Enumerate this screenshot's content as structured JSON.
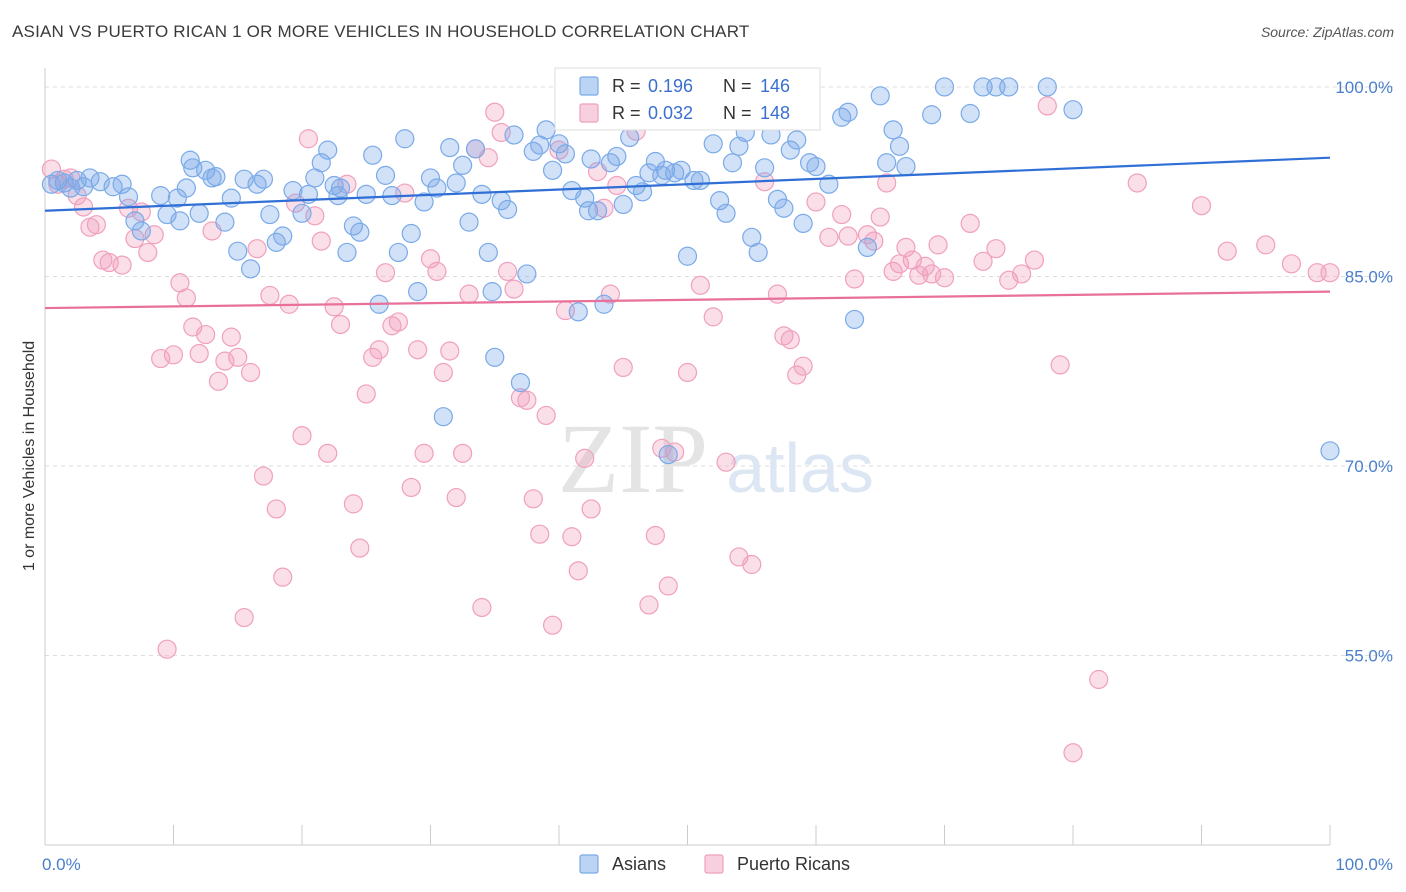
{
  "title": "ASIAN VS PUERTO RICAN 1 OR MORE VEHICLES IN HOUSEHOLD CORRELATION CHART",
  "source": "Source: ZipAtlas.com",
  "watermark": {
    "zip": "ZIP",
    "atlas": "atlas"
  },
  "colors": {
    "asian": "#7aaae8",
    "asian_line": "#2f6fd6",
    "pr": "#f0a0bd",
    "pr_line": "#e8709a",
    "tick": "#4a7fcc",
    "grid": "#dddddd"
  },
  "legend": {
    "asian": {
      "r_label": "R =",
      "r_value": "0.196",
      "n_label": "N =",
      "n_value": "146"
    },
    "pr": {
      "r_label": "R =",
      "r_value": "0.032",
      "n_label": "N =",
      "n_value": "148"
    }
  },
  "chart_data": {
    "type": "scatter",
    "xlabel": "",
    "ylabel": "1 or more Vehicles in Household",
    "xlim": [
      0,
      100
    ],
    "ylim": [
      40,
      101.5
    ],
    "x_tick_labels": [
      {
        "value": 0,
        "label": "0.0%"
      },
      {
        "value": 100,
        "label": "100.0%"
      }
    ],
    "y_tick_labels": [
      {
        "value": 100,
        "label": "100.0%"
      },
      {
        "value": 85,
        "label": "85.0%"
      },
      {
        "value": 70,
        "label": "70.0%"
      },
      {
        "value": 55,
        "label": "55.0%"
      }
    ],
    "grid": true,
    "legend_position": "top-center",
    "series": [
      {
        "name": "Asians",
        "trend": {
          "x": [
            0,
            100
          ],
          "y": [
            90.2,
            94.4
          ]
        },
        "points": [
          [
            0.5,
            92.3
          ],
          [
            1,
            92.6
          ],
          [
            1.5,
            92.4
          ],
          [
            2,
            92.0
          ],
          [
            2.5,
            92.6
          ],
          [
            3,
            92.1
          ],
          [
            3.5,
            92.8
          ],
          [
            4.3,
            92.5
          ],
          [
            5.3,
            92.1
          ],
          [
            6,
            92.3
          ],
          [
            6.5,
            91.3
          ],
          [
            7,
            89.4
          ],
          [
            7.5,
            88.6
          ],
          [
            9,
            91.4
          ],
          [
            9.5,
            89.9
          ],
          [
            10.3,
            91.2
          ],
          [
            10.5,
            89.4
          ],
          [
            11,
            92.0
          ],
          [
            11.3,
            94.2
          ],
          [
            11.5,
            93.6
          ],
          [
            12,
            90.0
          ],
          [
            12.5,
            93.4
          ],
          [
            13,
            92.8
          ],
          [
            13.3,
            92.9
          ],
          [
            14,
            89.3
          ],
          [
            14.5,
            91.2
          ],
          [
            15,
            87.0
          ],
          [
            15.5,
            92.7
          ],
          [
            16,
            85.6
          ],
          [
            16.5,
            92.3
          ],
          [
            17,
            92.7
          ],
          [
            17.5,
            89.9
          ],
          [
            18,
            87.7
          ],
          [
            18.5,
            88.2
          ],
          [
            19.3,
            91.8
          ],
          [
            20,
            90.0
          ],
          [
            20.5,
            91.5
          ],
          [
            21,
            92.8
          ],
          [
            21.5,
            94.0
          ],
          [
            22,
            95.0
          ],
          [
            22.5,
            92.2
          ],
          [
            22.8,
            91.4
          ],
          [
            23,
            92.0
          ],
          [
            23.5,
            86.9
          ],
          [
            24,
            89.0
          ],
          [
            24.5,
            88.5
          ],
          [
            25,
            91.5
          ],
          [
            25.5,
            94.6
          ],
          [
            26,
            82.8
          ],
          [
            26.5,
            93.0
          ],
          [
            27,
            91.4
          ],
          [
            27.5,
            86.9
          ],
          [
            28,
            95.9
          ],
          [
            28.5,
            88.4
          ],
          [
            29,
            83.8
          ],
          [
            29.5,
            90.9
          ],
          [
            30,
            92.8
          ],
          [
            30.5,
            92.0
          ],
          [
            31,
            73.9
          ],
          [
            31.5,
            95.2
          ],
          [
            32,
            92.4
          ],
          [
            32.5,
            93.8
          ],
          [
            33,
            89.3
          ],
          [
            33.5,
            95.1
          ],
          [
            34,
            91.5
          ],
          [
            34.5,
            86.9
          ],
          [
            34.8,
            83.8
          ],
          [
            35,
            78.6
          ],
          [
            35.5,
            91.0
          ],
          [
            36,
            90.3
          ],
          [
            36.5,
            96.2
          ],
          [
            37,
            76.6
          ],
          [
            37.5,
            85.2
          ],
          [
            38,
            94.9
          ],
          [
            38.5,
            95.4
          ],
          [
            39,
            96.6
          ],
          [
            39.5,
            93.4
          ],
          [
            40,
            95.5
          ],
          [
            40.5,
            94.7
          ],
          [
            41,
            91.8
          ],
          [
            41.5,
            82.2
          ],
          [
            42,
            91.2
          ],
          [
            42.3,
            90.2
          ],
          [
            42.5,
            94.3
          ],
          [
            43,
            90.2
          ],
          [
            43.5,
            82.8
          ],
          [
            44,
            94.0
          ],
          [
            44.5,
            94.5
          ],
          [
            45,
            90.7
          ],
          [
            45.5,
            96.0
          ],
          [
            46,
            92.2
          ],
          [
            46.5,
            91.7
          ],
          [
            47,
            93.2
          ],
          [
            47.5,
            94.1
          ],
          [
            48,
            93.0
          ],
          [
            48.3,
            93.4
          ],
          [
            48.5,
            70.9
          ],
          [
            49,
            93.2
          ],
          [
            49.5,
            93.4
          ],
          [
            50,
            86.6
          ],
          [
            50.5,
            92.6
          ],
          [
            51,
            92.6
          ],
          [
            52,
            95.5
          ],
          [
            52.5,
            91.0
          ],
          [
            53,
            90.0
          ],
          [
            53.5,
            94.0
          ],
          [
            54,
            95.3
          ],
          [
            54.5,
            96.4
          ],
          [
            55,
            88.1
          ],
          [
            55.5,
            86.9
          ],
          [
            56,
            93.6
          ],
          [
            56.5,
            96.2
          ],
          [
            57,
            91.1
          ],
          [
            57.5,
            90.4
          ],
          [
            58,
            95.0
          ],
          [
            58.5,
            95.8
          ],
          [
            59,
            89.2
          ],
          [
            59.5,
            94.0
          ],
          [
            60,
            93.7
          ],
          [
            61,
            92.3
          ],
          [
            62,
            97.6
          ],
          [
            62.5,
            98.0
          ],
          [
            63,
            81.6
          ],
          [
            64,
            87.3
          ],
          [
            65,
            99.3
          ],
          [
            65.5,
            94.0
          ],
          [
            66,
            96.6
          ],
          [
            66.5,
            95.3
          ],
          [
            67,
            93.7
          ],
          [
            69,
            97.8
          ],
          [
            70,
            100
          ],
          [
            72,
            97.9
          ],
          [
            73,
            100
          ],
          [
            74,
            100
          ],
          [
            75,
            100
          ],
          [
            78,
            100
          ],
          [
            80,
            98.2
          ],
          [
            100,
            71.2
          ]
        ]
      },
      {
        "name": "Puerto Ricans",
        "trend": {
          "x": [
            0,
            100
          ],
          "y": [
            82.5,
            83.8
          ]
        },
        "points": [
          [
            0.5,
            93.5
          ],
          [
            1,
            92.3
          ],
          [
            1.5,
            92.7
          ],
          [
            2,
            92.8
          ],
          [
            2.5,
            91.4
          ],
          [
            3,
            90.5
          ],
          [
            3.5,
            88.9
          ],
          [
            4,
            89.1
          ],
          [
            4.5,
            86.3
          ],
          [
            5,
            86.1
          ],
          [
            6,
            85.9
          ],
          [
            6.5,
            90.4
          ],
          [
            7,
            88.0
          ],
          [
            7.5,
            90.1
          ],
          [
            8,
            86.9
          ],
          [
            8.5,
            88.3
          ],
          [
            9,
            78.5
          ],
          [
            9.5,
            55.5
          ],
          [
            10,
            78.8
          ],
          [
            10.5,
            84.5
          ],
          [
            11,
            83.3
          ],
          [
            11.5,
            81.0
          ],
          [
            12,
            78.9
          ],
          [
            12.5,
            80.4
          ],
          [
            13,
            88.6
          ],
          [
            13.5,
            76.7
          ],
          [
            14,
            78.3
          ],
          [
            14.5,
            80.2
          ],
          [
            15,
            78.6
          ],
          [
            15.5,
            58.0
          ],
          [
            16,
            77.4
          ],
          [
            16.5,
            87.2
          ],
          [
            17,
            69.2
          ],
          [
            17.5,
            83.5
          ],
          [
            18,
            66.6
          ],
          [
            18.5,
            61.2
          ],
          [
            19,
            82.8
          ],
          [
            19.5,
            90.8
          ],
          [
            20,
            72.4
          ],
          [
            20.5,
            95.9
          ],
          [
            21,
            89.8
          ],
          [
            21.5,
            87.8
          ],
          [
            22,
            71.0
          ],
          [
            22.5,
            82.6
          ],
          [
            23,
            81.2
          ],
          [
            23.5,
            92.3
          ],
          [
            24,
            67.0
          ],
          [
            24.5,
            63.5
          ],
          [
            25,
            75.7
          ],
          [
            25.5,
            78.6
          ],
          [
            26,
            79.2
          ],
          [
            26.5,
            85.3
          ],
          [
            27,
            81.1
          ],
          [
            27.5,
            81.4
          ],
          [
            28,
            91.6
          ],
          [
            28.5,
            68.3
          ],
          [
            29,
            79.2
          ],
          [
            29.5,
            71.0
          ],
          [
            30,
            86.4
          ],
          [
            30.5,
            85.4
          ],
          [
            31,
            77.4
          ],
          [
            31.5,
            79.1
          ],
          [
            32,
            67.5
          ],
          [
            32.5,
            71.0
          ],
          [
            33,
            83.6
          ],
          [
            33.5,
            95.1
          ],
          [
            34,
            58.8
          ],
          [
            34.5,
            94.4
          ],
          [
            35,
            98.0
          ],
          [
            35.5,
            96.4
          ],
          [
            36,
            85.4
          ],
          [
            36.5,
            84.0
          ],
          [
            37,
            75.4
          ],
          [
            37.5,
            75.2
          ],
          [
            38,
            67.4
          ],
          [
            38.5,
            64.6
          ],
          [
            39,
            74.0
          ],
          [
            39.5,
            57.4
          ],
          [
            40,
            95.0
          ],
          [
            40.5,
            82.3
          ],
          [
            41,
            64.4
          ],
          [
            41.5,
            61.7
          ],
          [
            42,
            70.6
          ],
          [
            42.5,
            66.6
          ],
          [
            43,
            93.3
          ],
          [
            43.5,
            90.4
          ],
          [
            44,
            83.6
          ],
          [
            44.5,
            92.2
          ],
          [
            45,
            77.8
          ],
          [
            46,
            96.5
          ],
          [
            47,
            59.0
          ],
          [
            47.5,
            64.5
          ],
          [
            48,
            71.4
          ],
          [
            48.5,
            60.5
          ],
          [
            49,
            71.1
          ],
          [
            50,
            77.4
          ],
          [
            51,
            84.3
          ],
          [
            52,
            81.8
          ],
          [
            53,
            70.3
          ],
          [
            54,
            62.8
          ],
          [
            55,
            62.2
          ],
          [
            56,
            92.5
          ],
          [
            57,
            83.6
          ],
          [
            57.5,
            80.3
          ],
          [
            58,
            80.0
          ],
          [
            58.5,
            77.2
          ],
          [
            59,
            77.9
          ],
          [
            60,
            90.9
          ],
          [
            61,
            88.1
          ],
          [
            62,
            89.9
          ],
          [
            62.5,
            88.2
          ],
          [
            63,
            84.8
          ],
          [
            64,
            88.3
          ],
          [
            64.5,
            87.8
          ],
          [
            65,
            89.7
          ],
          [
            65.5,
            92.4
          ],
          [
            66,
            85.4
          ],
          [
            66.5,
            86.0
          ],
          [
            67,
            87.3
          ],
          [
            67.5,
            86.3
          ],
          [
            68,
            85.1
          ],
          [
            68.5,
            85.8
          ],
          [
            69,
            85.2
          ],
          [
            69.5,
            87.5
          ],
          [
            70,
            84.9
          ],
          [
            72,
            89.2
          ],
          [
            73,
            86.2
          ],
          [
            74,
            87.2
          ],
          [
            75,
            84.7
          ],
          [
            76,
            85.2
          ],
          [
            77,
            86.3
          ],
          [
            78,
            98.5
          ],
          [
            79,
            78.0
          ],
          [
            80,
            47.3
          ],
          [
            82,
            53.1
          ],
          [
            85,
            92.4
          ],
          [
            90,
            90.6
          ],
          [
            92,
            87.0
          ],
          [
            95,
            87.5
          ],
          [
            97,
            86.0
          ],
          [
            99,
            85.3
          ],
          [
            100,
            85.3
          ]
        ]
      }
    ]
  },
  "bottom_legend": [
    {
      "label": "Asians",
      "color": "#7aaae8"
    },
    {
      "label": "Puerto Ricans",
      "color": "#f0a0bd"
    }
  ]
}
